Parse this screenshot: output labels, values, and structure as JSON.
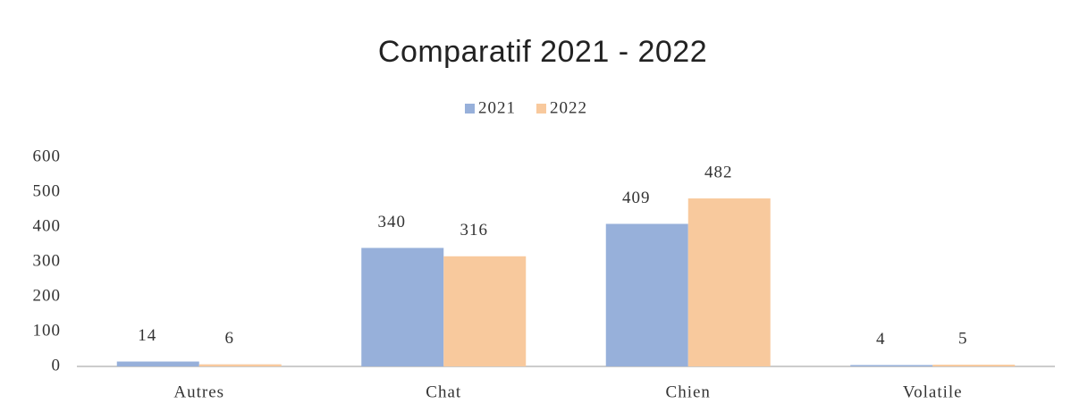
{
  "chart_data": {
    "type": "bar",
    "title": "Comparatif 2021 - 2022",
    "categories": [
      "Autres",
      "Chat",
      "Chien",
      "Volatile"
    ],
    "series": [
      {
        "name": "2021",
        "color": "#97b0da",
        "values": [
          14,
          340,
          409,
          4
        ]
      },
      {
        "name": "2022",
        "color": "#f8c99d",
        "values": [
          6,
          316,
          482,
          5
        ]
      }
    ],
    "ylim": [
      0,
      600
    ],
    "yticks": [
      0,
      100,
      200,
      300,
      400,
      500,
      600
    ],
    "grid": false,
    "legend": "top"
  }
}
